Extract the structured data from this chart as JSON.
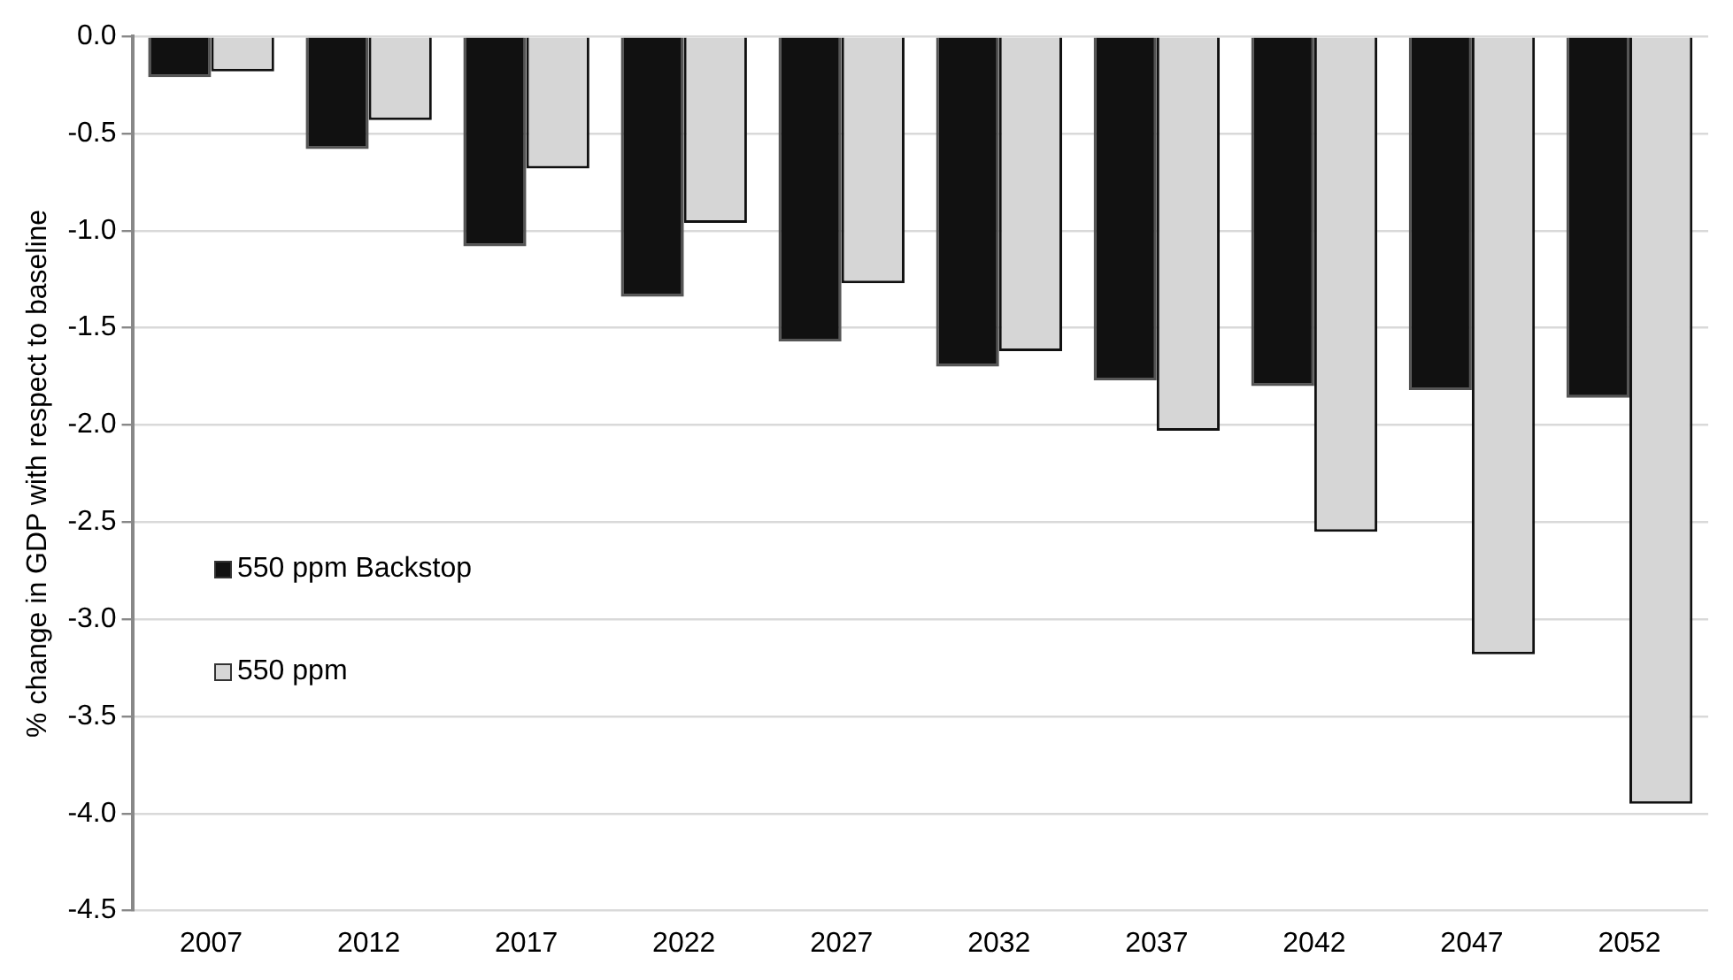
{
  "chart_data": {
    "type": "bar",
    "ylabel": "% change in GDP with respect to baseline",
    "categories": [
      "2007",
      "2012",
      "2017",
      "2022",
      "2027",
      "2032",
      "2037",
      "2042",
      "2047",
      "2052"
    ],
    "series": [
      {
        "name": "550 ppm Backstop",
        "color": "#111111",
        "values": [
          -0.21,
          -0.58,
          -1.08,
          -1.34,
          -1.57,
          -1.7,
          -1.77,
          -1.8,
          -1.82,
          -1.86
        ]
      },
      {
        "name": "550 ppm",
        "color": "#d6d6d6",
        "values": [
          -0.18,
          -0.43,
          -0.68,
          -0.96,
          -1.27,
          -1.62,
          -2.03,
          -2.55,
          -3.18,
          -3.95
        ]
      }
    ],
    "ylim": [
      -4.5,
      0
    ],
    "yticks": [
      {
        "value": 0,
        "label": "0.0"
      },
      {
        "value": -0.5,
        "label": "-0.5"
      },
      {
        "value": -1,
        "label": "-1.0"
      },
      {
        "value": -1.5,
        "label": "-1.5"
      },
      {
        "value": -2,
        "label": "-2.0"
      },
      {
        "value": -2.5,
        "label": "-2.5"
      },
      {
        "value": -3,
        "label": "-3.0"
      },
      {
        "value": -3.5,
        "label": "-3.5"
      },
      {
        "value": -4,
        "label": "-4.0"
      },
      {
        "value": -4.5,
        "label": "-4.5"
      }
    ],
    "grid": "y",
    "legend": "left"
  }
}
